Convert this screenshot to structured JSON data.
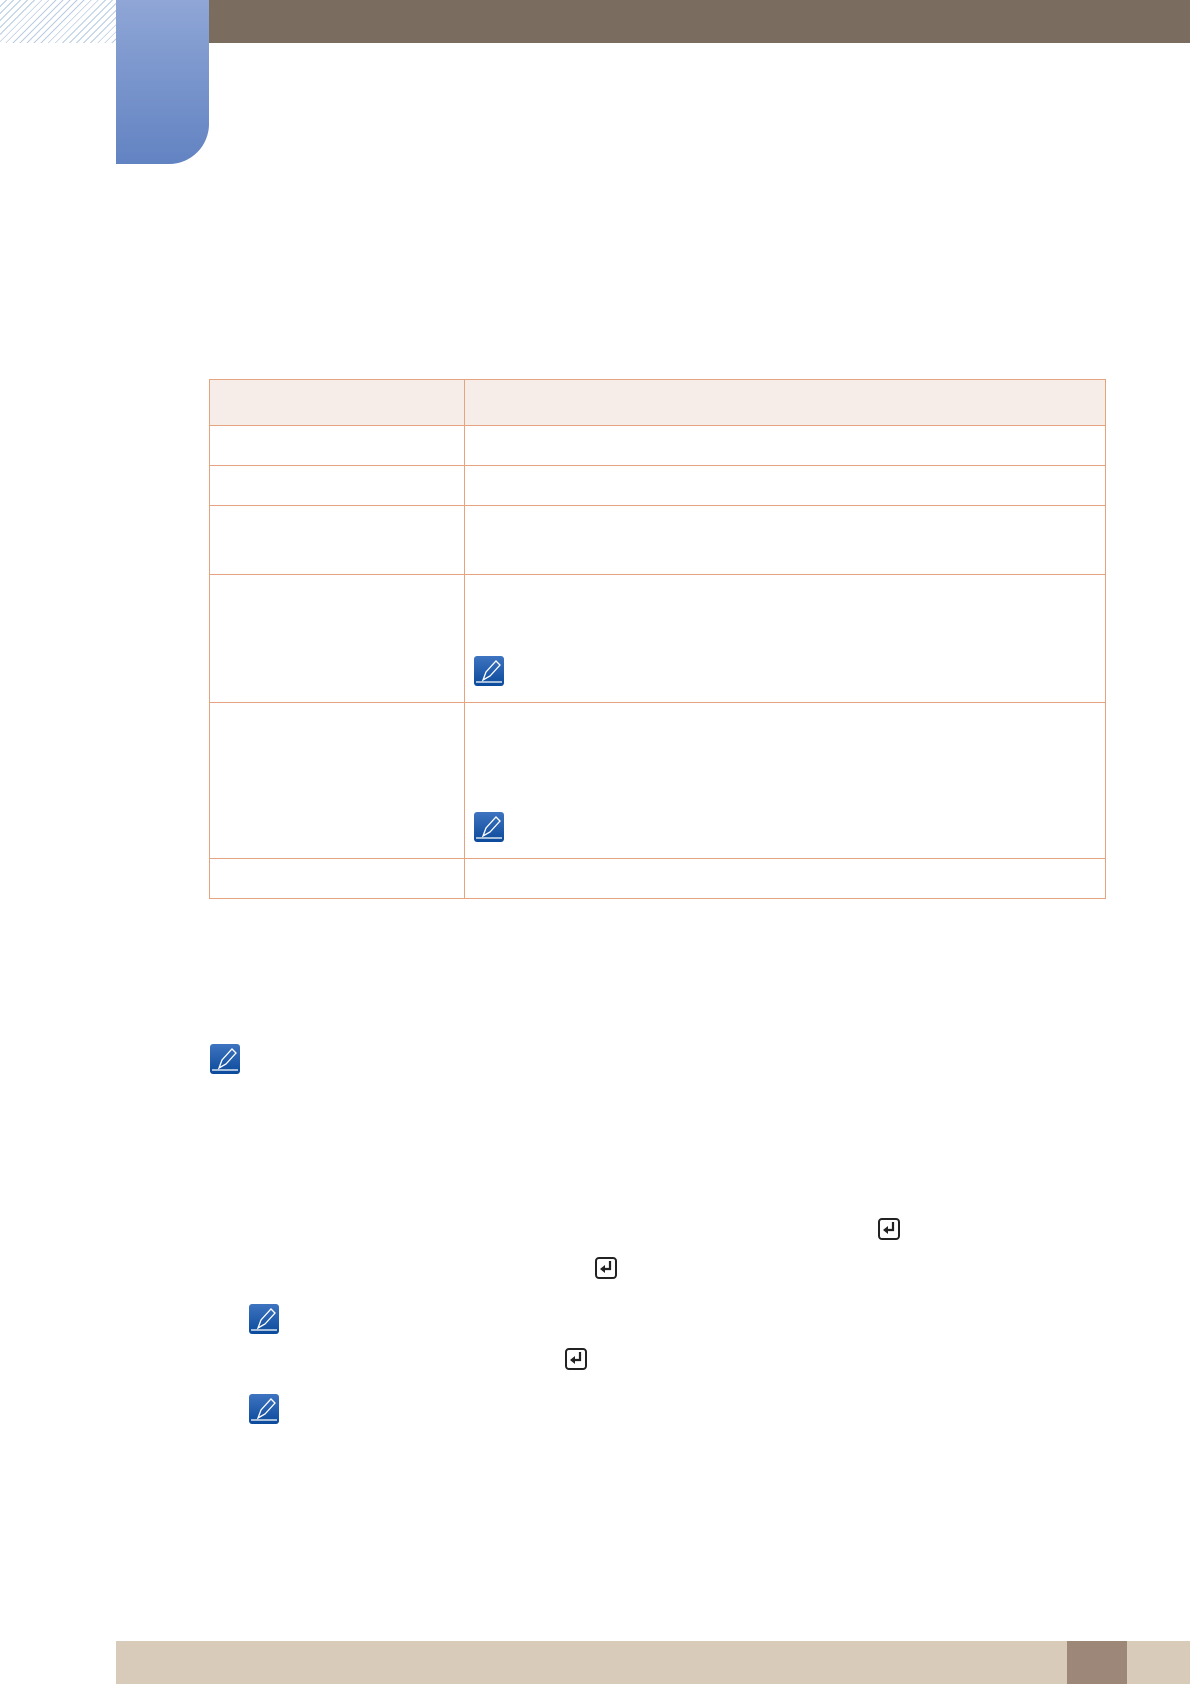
{
  "colors": {
    "header_bar": "#7a6c5e",
    "chapter_tab_top": "#8fa6d6",
    "chapter_tab_bottom": "#6283c2",
    "table_border": "#e6a37f",
    "table_header_bg": "#f7ede8",
    "footer_bar": "#d8cbb9",
    "page_number_box": "#9c8778",
    "note_icon": "#1a5aa8"
  },
  "icons": {
    "note": "note-pencil-icon",
    "enter": "enter-key-icon"
  },
  "table": {
    "row_count": 7,
    "column_count": 2
  }
}
